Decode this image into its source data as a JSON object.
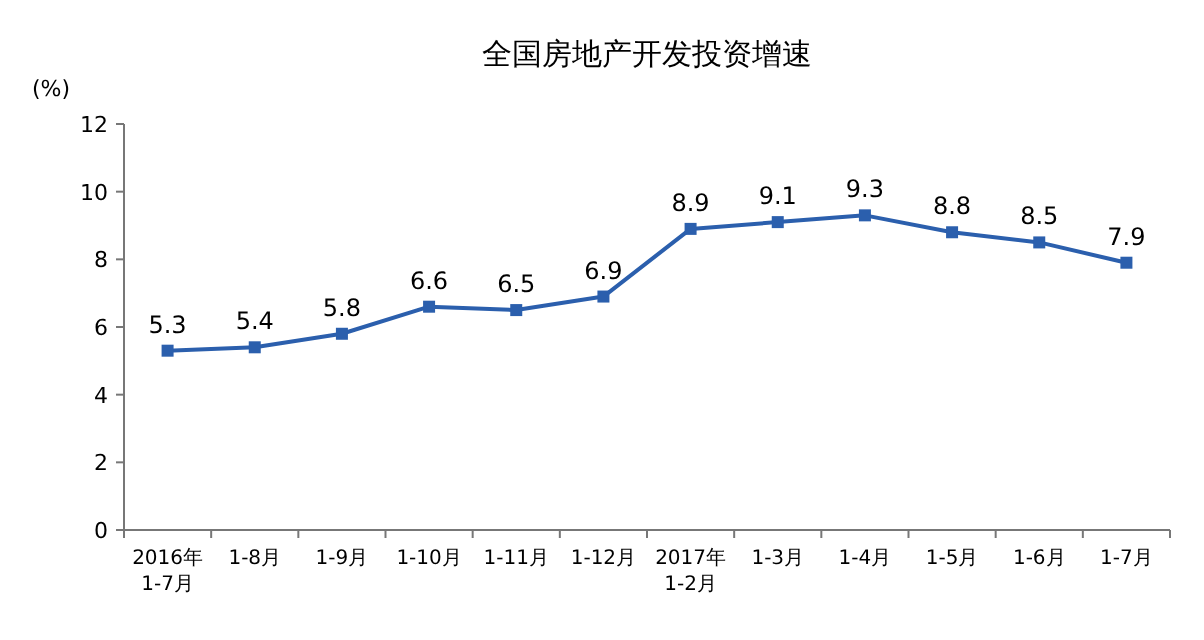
{
  "chart_data": {
    "type": "line",
    "title": "全国房地产开发投资增速",
    "ylabel": "(%)",
    "categories": [
      "2016年 1-7月",
      "1-8月",
      "1-9月",
      "1-10月",
      "1-11月",
      "1-12月",
      "2017年 1-2月",
      "1-3月",
      "1-4月",
      "1-5月",
      "1-6月",
      "1-7月"
    ],
    "series": [
      {
        "color": "#2b5fad",
        "values": [
          5.3,
          5.4,
          5.8,
          6.6,
          6.5,
          6.9,
          8.9,
          9.1,
          9.3,
          8.8,
          8.5,
          7.9
        ]
      }
    ],
    "ylim": [
      0,
      12
    ],
    "yticks": [
      0,
      2,
      4,
      6,
      8,
      10,
      12
    ],
    "data_labels": true,
    "marker": "square",
    "grid": false
  }
}
